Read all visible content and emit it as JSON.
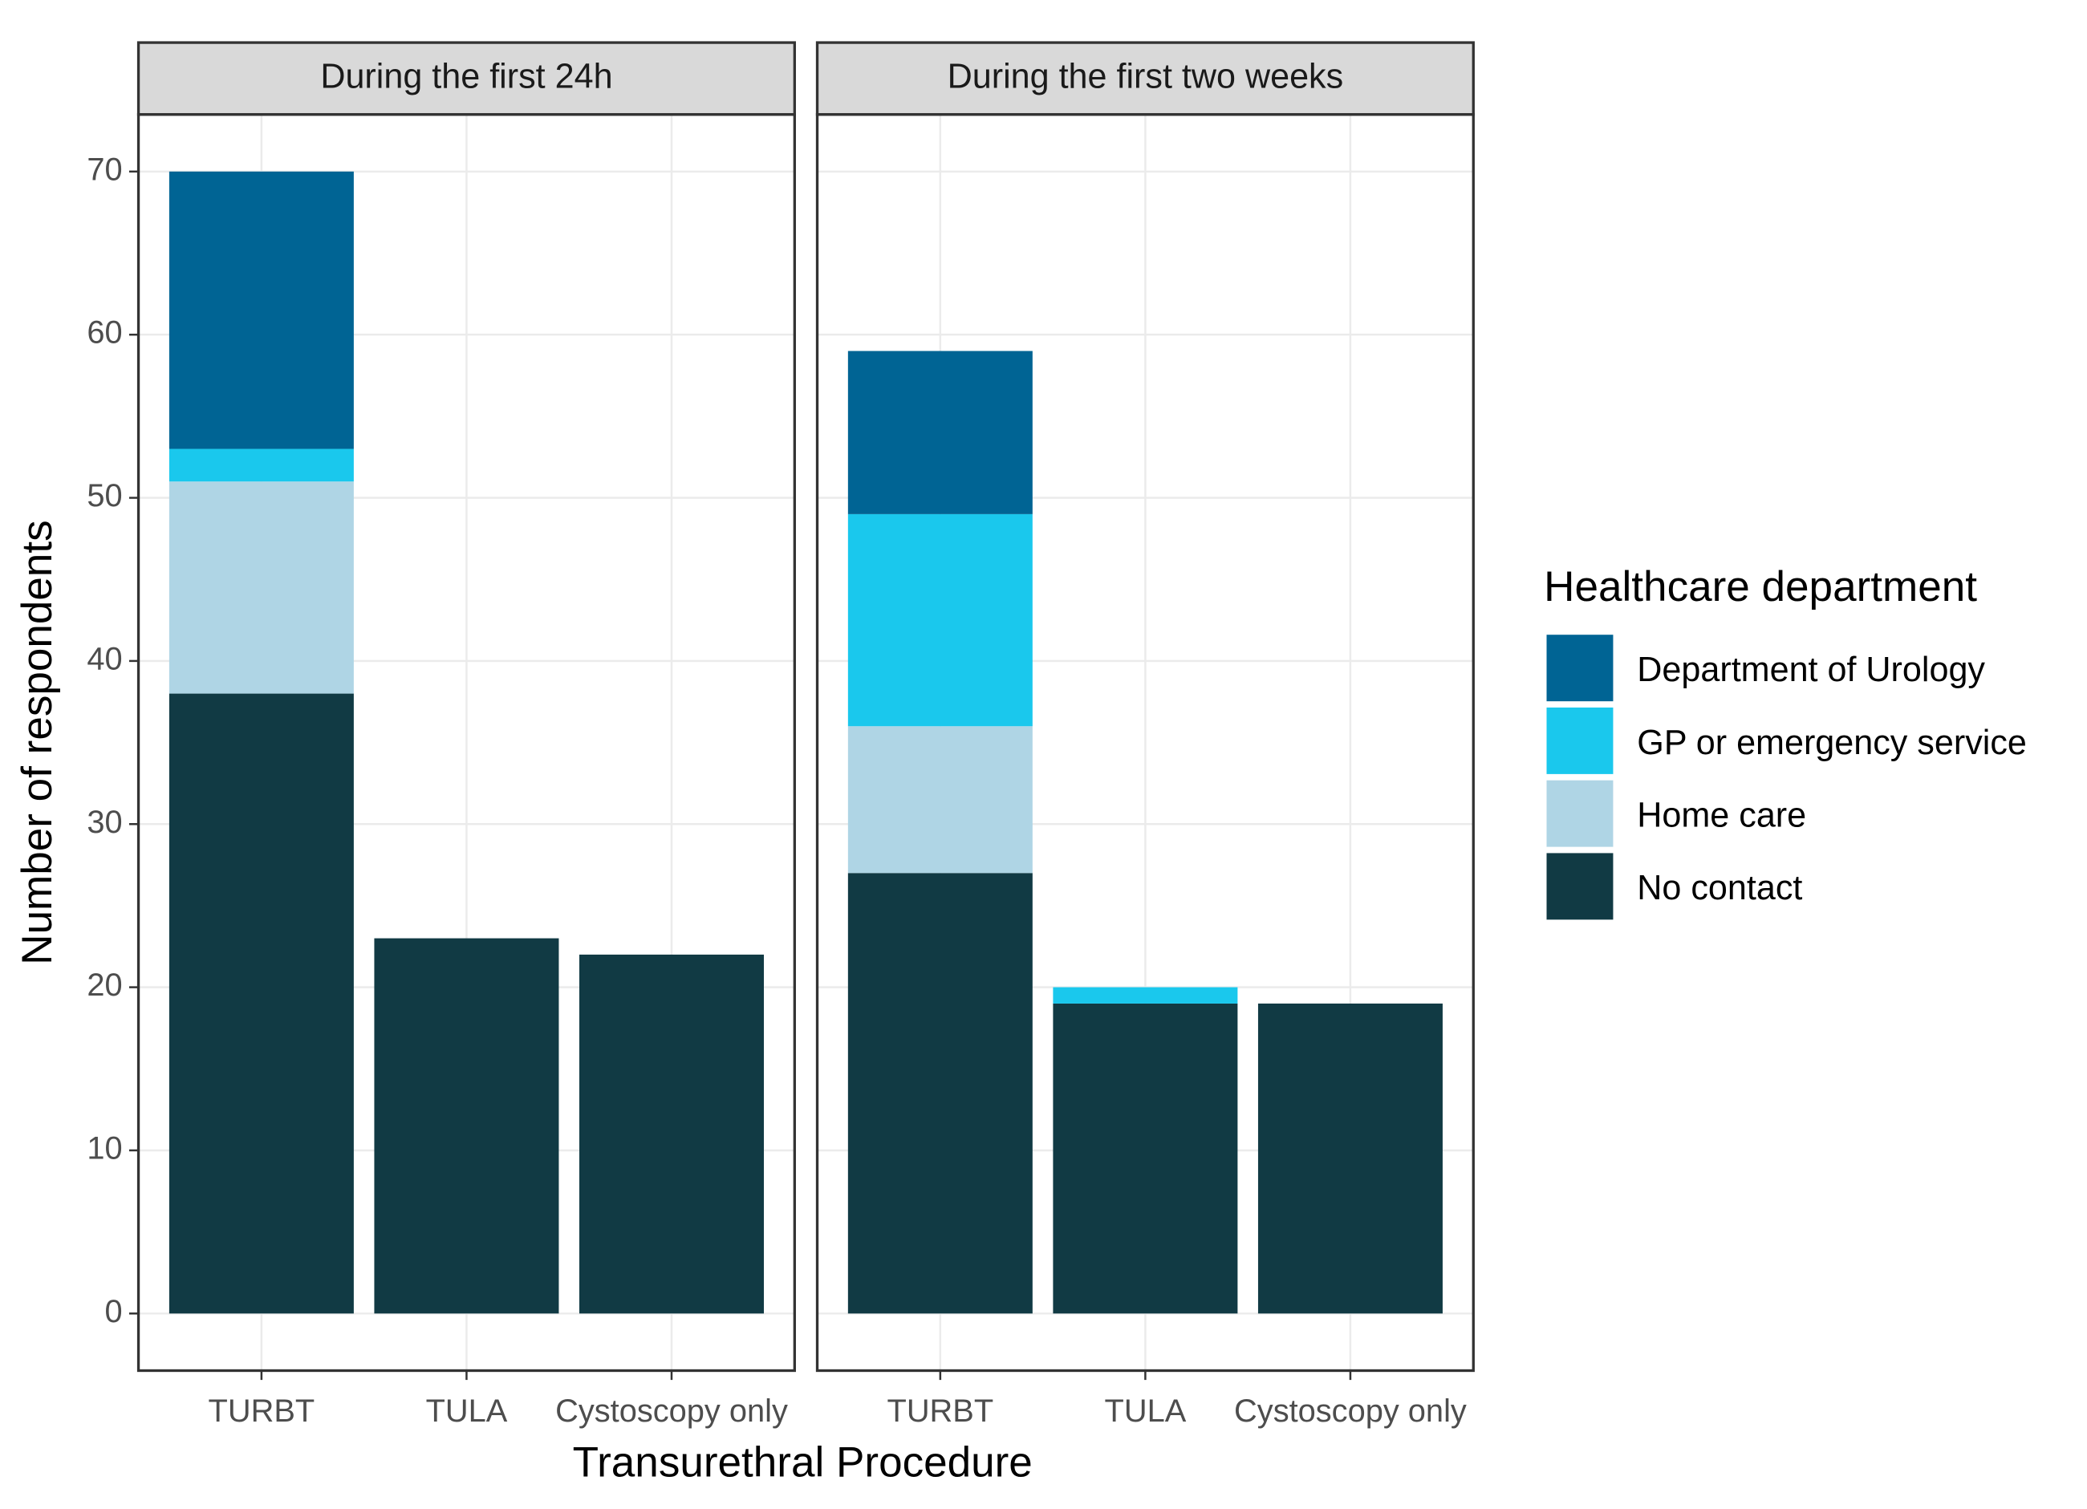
{
  "chart_data": {
    "type": "bar",
    "stacked": true,
    "facets": [
      "During the first 24h",
      "During the first two weeks"
    ],
    "categories": [
      "TURBT",
      "TULA",
      "Cystoscopy only"
    ],
    "xlabel": "Transurethral Procedure",
    "ylabel": "Number of respondents",
    "legend_title": "Healthcare department",
    "legend": "right",
    "grid": true,
    "ylim": [
      -3.5,
      73.5
    ],
    "yticks": [
      0,
      10,
      20,
      30,
      40,
      50,
      60,
      70
    ],
    "series": [
      {
        "name": "Department of Urology",
        "color": "#006494",
        "values": [
          [
            17,
            0,
            0
          ],
          [
            10,
            0,
            0
          ]
        ]
      },
      {
        "name": "GP or emergency service",
        "color": "#1ac8ed",
        "values": [
          [
            2,
            0,
            0
          ],
          [
            13,
            1,
            0
          ]
        ]
      },
      {
        "name": "Home care",
        "color": "#afd5e5",
        "values": [
          [
            13,
            0,
            0
          ],
          [
            9,
            0,
            0
          ]
        ]
      },
      {
        "name": "No contact",
        "color": "#113a44",
        "values": [
          [
            38,
            23,
            22
          ],
          [
            27,
            19,
            19
          ]
        ]
      }
    ]
  }
}
